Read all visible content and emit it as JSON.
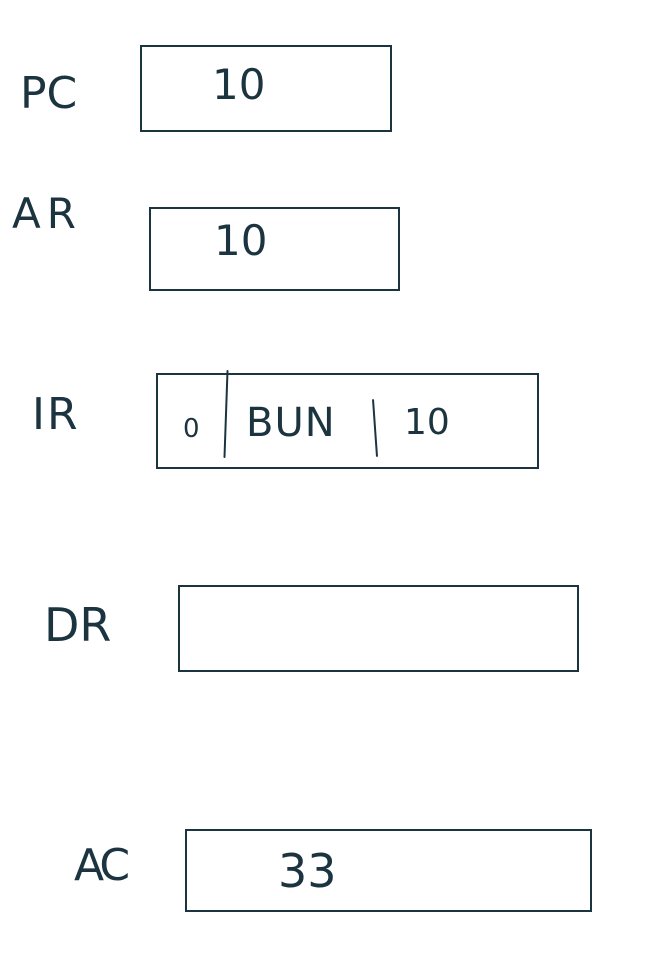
{
  "registers": {
    "pc": {
      "label": "PC",
      "value": "10"
    },
    "ar": {
      "label": "AR",
      "value": "10"
    },
    "ir": {
      "label": "IR",
      "i_bit": "0",
      "opcode": "BUN",
      "address": "10"
    },
    "dr": {
      "label": "DR",
      "value": ""
    },
    "ac": {
      "label": "AC",
      "value": "33"
    }
  }
}
